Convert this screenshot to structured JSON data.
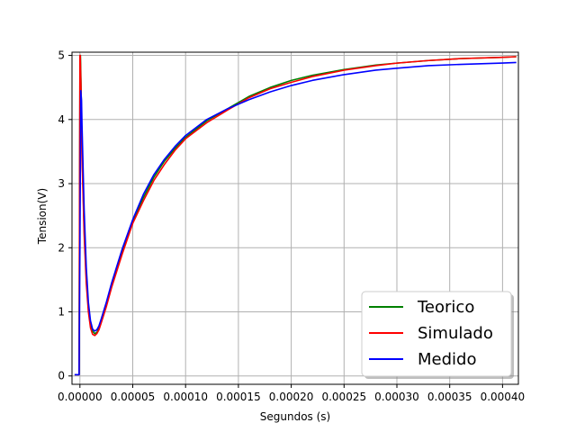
{
  "chart_data": {
    "type": "line",
    "title": "",
    "xlabel": "Segundos (s)",
    "ylabel": "Tension(V)",
    "xlim": [
      -7.5e-06,
      0.000415
    ],
    "ylim": [
      -0.13,
      5.05
    ],
    "grid": true,
    "legend_position": "bottom-right",
    "x_ticks": [
      0,
      5e-05,
      0.0001,
      0.00015,
      0.0002,
      0.00025,
      0.0003,
      0.00035,
      0.0004
    ],
    "x_tick_labels": [
      "0.00000",
      "0.00005",
      "0.00010",
      "0.00015",
      "0.00020",
      "0.00025",
      "0.00030",
      "0.00035",
      "0.00040"
    ],
    "y_ticks": [
      0,
      1,
      2,
      3,
      4,
      5
    ],
    "y_tick_labels": [
      "0",
      "1",
      "2",
      "3",
      "4",
      "5"
    ],
    "series": [
      {
        "name": "Teorico",
        "color": "#008000",
        "x": [
          -5e-06,
          -8e-07,
          0,
          5e-07,
          1e-06,
          2e-06,
          4e-06,
          6e-06,
          8e-06,
          1e-05,
          1.2e-05,
          1.4e-05,
          1.6e-05,
          1.8e-05,
          2e-05,
          2.5e-05,
          3e-05,
          4e-05,
          5e-05,
          6e-05,
          7e-05,
          8e-05,
          9e-05,
          0.0001,
          0.00012,
          0.00014,
          0.00016,
          0.00018,
          0.0002,
          0.00022,
          0.00025,
          0.00028,
          0.0003,
          0.00033,
          0.00036,
          0.0004,
          0.000413
        ],
        "y": [
          0.02,
          0.02,
          4.6,
          5.0,
          4.6,
          3.5,
          2.3,
          1.55,
          1.08,
          0.82,
          0.7,
          0.66,
          0.68,
          0.74,
          0.84,
          1.1,
          1.4,
          1.93,
          2.4,
          2.78,
          3.1,
          3.35,
          3.55,
          3.72,
          3.98,
          4.17,
          4.36,
          4.5,
          4.61,
          4.69,
          4.78,
          4.85,
          4.88,
          4.92,
          4.95,
          4.97,
          4.98
        ]
      },
      {
        "name": "Simulado",
        "color": "#ff0000",
        "x": [
          -5e-06,
          -8e-07,
          0,
          3e-07,
          1e-06,
          2e-06,
          4e-06,
          6e-06,
          8e-06,
          1e-05,
          1.2e-05,
          1.4e-05,
          1.6e-05,
          1.8e-05,
          2e-05,
          2.5e-05,
          3e-05,
          4e-05,
          5e-05,
          6e-05,
          7e-05,
          8e-05,
          9e-05,
          0.0001,
          0.00012,
          0.00014,
          0.00016,
          0.00018,
          0.0002,
          0.00022,
          0.00025,
          0.00028,
          0.0003,
          0.00033,
          0.00036,
          0.0004,
          0.000413
        ],
        "y": [
          0.02,
          0.02,
          5.0,
          5.0,
          4.5,
          3.4,
          2.2,
          1.45,
          1.0,
          0.75,
          0.65,
          0.63,
          0.66,
          0.72,
          0.82,
          1.08,
          1.38,
          1.9,
          2.38,
          2.73,
          3.05,
          3.3,
          3.52,
          3.7,
          3.95,
          4.15,
          4.34,
          4.48,
          4.58,
          4.67,
          4.77,
          4.84,
          4.88,
          4.92,
          4.95,
          4.97,
          4.98
        ]
      },
      {
        "name": "Medido",
        "color": "#0000ff",
        "x": [
          -5e-06,
          -8e-07,
          0,
          8e-07,
          1.5e-06,
          2e-06,
          4e-06,
          6e-06,
          8e-06,
          1e-05,
          1.2e-05,
          1.4e-05,
          1.6e-05,
          1.8e-05,
          2e-05,
          2.5e-05,
          3e-05,
          4e-05,
          5e-05,
          6e-05,
          7e-05,
          8e-05,
          9e-05,
          0.0001,
          0.00012,
          0.00014,
          0.00016,
          0.00018,
          0.0002,
          0.00022,
          0.00025,
          0.00028,
          0.0003,
          0.00033,
          0.00036,
          0.0004,
          0.000413
        ],
        "y": [
          0.02,
          0.02,
          2.0,
          4.45,
          4.3,
          3.9,
          2.6,
          1.7,
          1.15,
          0.86,
          0.73,
          0.7,
          0.72,
          0.78,
          0.88,
          1.15,
          1.45,
          1.98,
          2.44,
          2.83,
          3.14,
          3.38,
          3.58,
          3.75,
          4.0,
          4.17,
          4.31,
          4.43,
          4.53,
          4.61,
          4.7,
          4.77,
          4.8,
          4.84,
          4.86,
          4.88,
          4.89
        ]
      }
    ]
  }
}
